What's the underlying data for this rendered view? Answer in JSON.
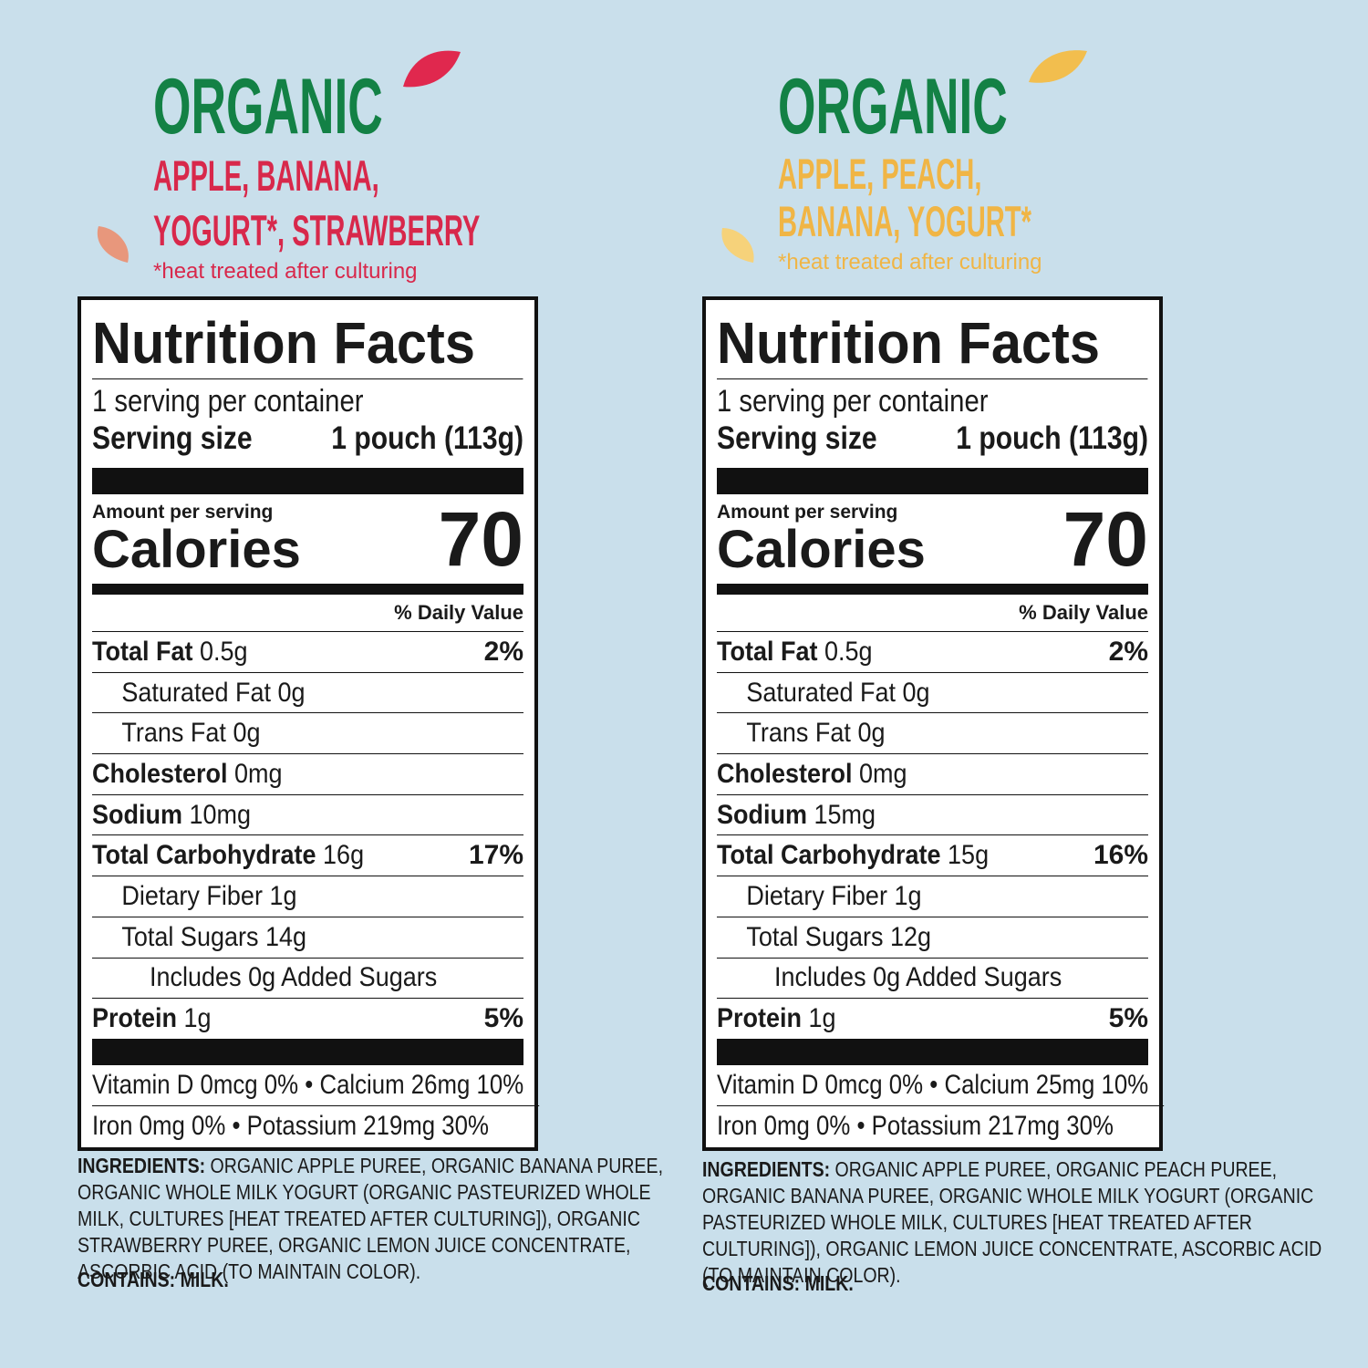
{
  "panels": [
    {
      "organic": "ORGANIC",
      "flavor": [
        "APPLE, BANANA,",
        "YOGURT*, STRAWBERRY"
      ],
      "note": "*heat treated after culturing",
      "label": {
        "title": "Nutrition Facts",
        "servings": "1 serving per container",
        "serving_size_label": "Serving size",
        "serving_size": "1 pouch (113g)",
        "amount": "Amount per serving",
        "calories_label": "Calories",
        "calories": "70",
        "dv_header": "% Daily Value",
        "rows": [
          {
            "name": "Total Fat",
            "amount": "0.5g",
            "dv": "2%"
          },
          {
            "name": "Saturated Fat",
            "amount": "0g"
          },
          {
            "name": "Trans Fat",
            "amount": "0g"
          },
          {
            "name": "Cholesterol",
            "amount": "0mg"
          },
          {
            "name": "Sodium",
            "amount": "10mg"
          },
          {
            "name": "Total Carbohydrate",
            "amount": "16g",
            "dv": "17%"
          },
          {
            "name": "Dietary Fiber",
            "amount": "1g"
          },
          {
            "name": "Total Sugars",
            "amount": "14g"
          },
          {
            "name": "Includes 0g Added Sugars"
          },
          {
            "name": "Protein",
            "amount": "1g",
            "dv": "5%"
          }
        ],
        "footer": [
          "Vitamin D 0mcg 0% • Calcium 26mg 10%",
          "Iron 0mg 0% • Potassium 219mg 30%"
        ]
      },
      "ingredients_label": "INGREDIENTS:",
      "ingredients": "ORGANIC APPLE PUREE, ORGANIC BANANA PUREE, ORGANIC WHOLE MILK YOGURT (ORGANIC PASTEURIZED WHOLE MILK, CULTURES [HEAT TREATED AFTER CULTURING]), ORGANIC STRAWBERRY PUREE, ORGANIC LEMON JUICE CONCENTRATE, ASCORBIC ACID (TO MAINTAIN COLOR).",
      "contains": "CONTAINS: MILK."
    },
    {
      "organic": "ORGANIC",
      "flavor": [
        "APPLE, PEACH,",
        "BANANA, YOGURT*"
      ],
      "note": "*heat treated after culturing",
      "label": {
        "title": "Nutrition Facts",
        "servings": "1 serving per container",
        "serving_size_label": "Serving size",
        "serving_size": "1 pouch (113g)",
        "amount": "Amount per serving",
        "calories_label": "Calories",
        "calories": "70",
        "dv_header": "% Daily Value",
        "rows": [
          {
            "name": "Total Fat",
            "amount": "0.5g",
            "dv": "2%"
          },
          {
            "name": "Saturated Fat",
            "amount": "0g"
          },
          {
            "name": "Trans Fat",
            "amount": "0g"
          },
          {
            "name": "Cholesterol",
            "amount": "0mg"
          },
          {
            "name": "Sodium",
            "amount": "15mg"
          },
          {
            "name": "Total Carbohydrate",
            "amount": "15g",
            "dv": "16%"
          },
          {
            "name": "Dietary Fiber",
            "amount": "1g"
          },
          {
            "name": "Total Sugars",
            "amount": "12g"
          },
          {
            "name": "Includes 0g Added Sugars"
          },
          {
            "name": "Protein",
            "amount": "1g",
            "dv": "5%"
          }
        ],
        "footer": [
          "Vitamin D 0mcg 0% • Calcium 25mg 10%",
          "Iron 0mg 0% • Potassium 217mg 30%"
        ]
      },
      "ingredients_label": "INGREDIENTS:",
      "ingredients": "ORGANIC APPLE PUREE, ORGANIC PEACH PUREE, ORGANIC BANANA PUREE, ORGANIC WHOLE MILK YOGURT (ORGANIC PASTEURIZED WHOLE MILK, CULTURES [HEAT TREATED AFTER CULTURING]), ORGANIC LEMON JUICE CONCENTRATE, ASCORBIC ACID (TO MAINTAIN COLOR).",
      "contains": "CONTAINS: MILK."
    }
  ]
}
